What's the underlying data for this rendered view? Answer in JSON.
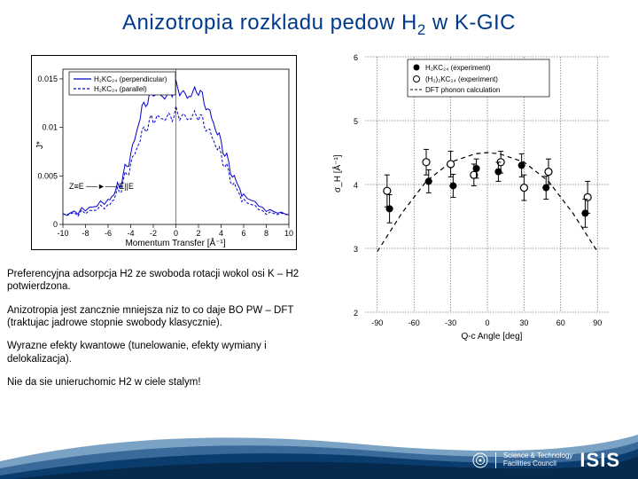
{
  "title_pre": "Anizotropia rozkladu pedow H",
  "title_sub": "2",
  "title_post": " w K-GIC",
  "paragraphs": [
    "Preferencyjna adsorpcja H2 ze swoboda rotacji wokol osi K – H2 potwierdzona.",
    "Anizotropia jest zancznie mniejsza niz to co daje BO PW – DFT (traktujac jadrowe stopnie swobody klasycznie).",
    "Wyrazne efekty kwantowe (tunelowanie, efekty wymiany i delokalizacja).",
    "Nie da sie unieruchomic H2 w ciele stalym!"
  ],
  "plot_left": {
    "type": "line",
    "xlabel": "Momentum Transfer [Å⁻¹]",
    "ylabel": "J*",
    "xlim": [
      -10,
      10
    ],
    "ylim": [
      0,
      0.016
    ],
    "xticks": [
      -10,
      -8,
      -6,
      -4,
      -2,
      0,
      2,
      4,
      6,
      8,
      10
    ],
    "yticks": [
      0,
      0.005,
      0.01,
      0.015
    ],
    "series": [
      {
        "name": "H₂KC₂₄ (perpendicular)",
        "color": "#0000cc",
        "style": "solid",
        "x": [
          -10,
          -8,
          -6,
          -5,
          -4,
          -3,
          -2,
          -1,
          0,
          1,
          2,
          3,
          4,
          5,
          6,
          8,
          10
        ],
        "y": [
          0.001,
          0.0015,
          0.0025,
          0.004,
          0.007,
          0.012,
          0.0138,
          0.013,
          0.0142,
          0.0132,
          0.0138,
          0.0115,
          0.0085,
          0.005,
          0.003,
          0.0015,
          0.001
        ]
      },
      {
        "name": "H₂KC₂₄ (parallel)",
        "color": "#0000cc",
        "style": "dash",
        "x": [
          -10,
          -8,
          -6,
          -5,
          -4,
          -3,
          -2,
          -1,
          0,
          1,
          2,
          3,
          4,
          5,
          6,
          8,
          10
        ],
        "y": [
          0.001,
          0.0012,
          0.002,
          0.0035,
          0.006,
          0.0095,
          0.011,
          0.0108,
          0.0115,
          0.011,
          0.0112,
          0.0095,
          0.0072,
          0.0042,
          0.0025,
          0.0012,
          0.001
        ]
      }
    ],
    "annotation_left": "Z≡E",
    "annotation_center": "E||E",
    "background_color": "#ffffff",
    "axis_color": "#000000"
  },
  "plot_right": {
    "type": "scatter",
    "xlabel": "Q-c Angle [deg]",
    "ylabel": "σ_H [Å⁻¹]",
    "xlim": [
      -100,
      100
    ],
    "ylim": [
      2,
      6
    ],
    "xticks": [
      -90,
      -60,
      -30,
      0,
      30,
      60,
      90
    ],
    "yticks": [
      2,
      3,
      4,
      5,
      6
    ],
    "legend": [
      {
        "marker": "filled-circle",
        "label": "H₂KC₂₄ (experiment)"
      },
      {
        "marker": "open-circle",
        "label": "(H₂)₂KC₂₄ (experiment)"
      },
      {
        "marker": "dash-line",
        "label": "DFT phonon calculation"
      }
    ],
    "series_filled": {
      "color": "#000000",
      "points": [
        {
          "x": -80,
          "y": 3.62,
          "ey": 0.22
        },
        {
          "x": -48,
          "y": 4.05,
          "ey": 0.18
        },
        {
          "x": -28,
          "y": 3.98,
          "ey": 0.18
        },
        {
          "x": -9,
          "y": 4.25,
          "ey": 0.15
        },
        {
          "x": 9,
          "y": 4.2,
          "ey": 0.15
        },
        {
          "x": 28,
          "y": 4.3,
          "ey": 0.18
        },
        {
          "x": 48,
          "y": 3.95,
          "ey": 0.18
        },
        {
          "x": 80,
          "y": 3.55,
          "ey": 0.22
        }
      ]
    },
    "series_open": {
      "color": "#000000",
      "points": [
        {
          "x": -82,
          "y": 3.9,
          "ey": 0.25
        },
        {
          "x": -50,
          "y": 4.35,
          "ey": 0.2
        },
        {
          "x": -30,
          "y": 4.32,
          "ey": 0.2
        },
        {
          "x": -11,
          "y": 4.15,
          "ey": 0.17
        },
        {
          "x": 11,
          "y": 4.35,
          "ey": 0.17
        },
        {
          "x": 30,
          "y": 3.95,
          "ey": 0.2
        },
        {
          "x": 50,
          "y": 4.2,
          "ey": 0.2
        },
        {
          "x": 82,
          "y": 3.8,
          "ey": 0.25
        }
      ]
    },
    "dft_curve": {
      "color": "#000000",
      "style": "dash",
      "x": [
        -90,
        -70,
        -50,
        -30,
        -10,
        0,
        10,
        30,
        50,
        70,
        90
      ],
      "y": [
        2.95,
        3.55,
        4.05,
        4.35,
        4.48,
        4.5,
        4.48,
        4.35,
        4.05,
        3.55,
        2.95
      ]
    },
    "background_color": "#ffffff"
  },
  "footer": {
    "swoosh_colors": [
      "#7aa2c4",
      "#3a6a9a",
      "#0a3d6e",
      "#062a4d"
    ],
    "logo_text": "ISIS",
    "stfc_line1": "Science & Technology",
    "stfc_line2": "Facilities Council"
  }
}
